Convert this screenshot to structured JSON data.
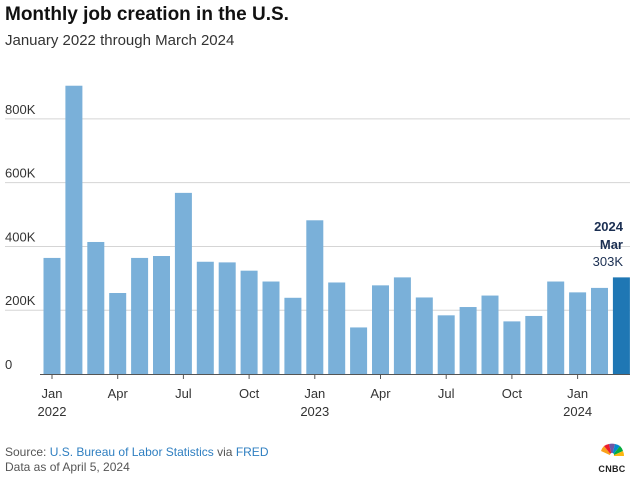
{
  "header": {
    "title": "Monthly job creation in the U.S.",
    "subtitle": "January 2022 through March 2024"
  },
  "footer": {
    "source_prefix": "Source: ",
    "source_link1": "U.S. Bureau of Labor Statistics",
    "source_via": " via ",
    "source_link2": "FRED",
    "data_note": "Data as of April 5, 2024"
  },
  "logo": {
    "text": "CNBC",
    "icon": "peacock-icon"
  },
  "colors": {
    "bar": "#7ab0d9",
    "bar_highlight": "#1f77b4",
    "grid": "#d5d5d5",
    "annotation_dark": "#1b2f52",
    "axis_text": "#333333",
    "link": "#2f7fc1"
  },
  "chart_data": {
    "type": "bar",
    "categories": [
      "Jan 2022",
      "Feb 2022",
      "Mar 2022",
      "Apr 2022",
      "May 2022",
      "Jun 2022",
      "Jul 2022",
      "Aug 2022",
      "Sep 2022",
      "Oct 2022",
      "Nov 2022",
      "Dec 2022",
      "Jan 2023",
      "Feb 2023",
      "Mar 2023",
      "Apr 2023",
      "May 2023",
      "Jun 2023",
      "Jul 2023",
      "Aug 2023",
      "Sep 2023",
      "Oct 2023",
      "Nov 2023",
      "Dec 2023",
      "Jan 2024",
      "Feb 2024",
      "Mar 2024"
    ],
    "values": [
      364,
      904,
      414,
      254,
      364,
      370,
      568,
      352,
      350,
      324,
      290,
      239,
      482,
      287,
      146,
      278,
      303,
      240,
      184,
      210,
      246,
      165,
      182,
      290,
      256,
      270,
      303
    ],
    "unit": "thousands of jobs",
    "highlight_index": 26,
    "ylim": [
      0,
      900
    ],
    "yticks": [
      0,
      200,
      400,
      600,
      800
    ],
    "ytick_labels": [
      "0",
      "200K",
      "400K",
      "600K",
      "800K"
    ],
    "xtick_labels": [
      {
        "index": 0,
        "month": "Jan",
        "year": "2022"
      },
      {
        "index": 3,
        "month": "Apr",
        "year": ""
      },
      {
        "index": 6,
        "month": "Jul",
        "year": ""
      },
      {
        "index": 9,
        "month": "Oct",
        "year": ""
      },
      {
        "index": 12,
        "month": "Jan",
        "year": "2023"
      },
      {
        "index": 15,
        "month": "Apr",
        "year": ""
      },
      {
        "index": 18,
        "month": "Jul",
        "year": ""
      },
      {
        "index": 21,
        "month": "Oct",
        "year": ""
      },
      {
        "index": 24,
        "month": "Jan",
        "year": "2024"
      }
    ],
    "annotation": {
      "year": "2024",
      "month": "Mar",
      "value": "303K"
    },
    "grid": true,
    "title": "Monthly job creation in the U.S.",
    "subtitle": "January 2022 through March 2024"
  }
}
